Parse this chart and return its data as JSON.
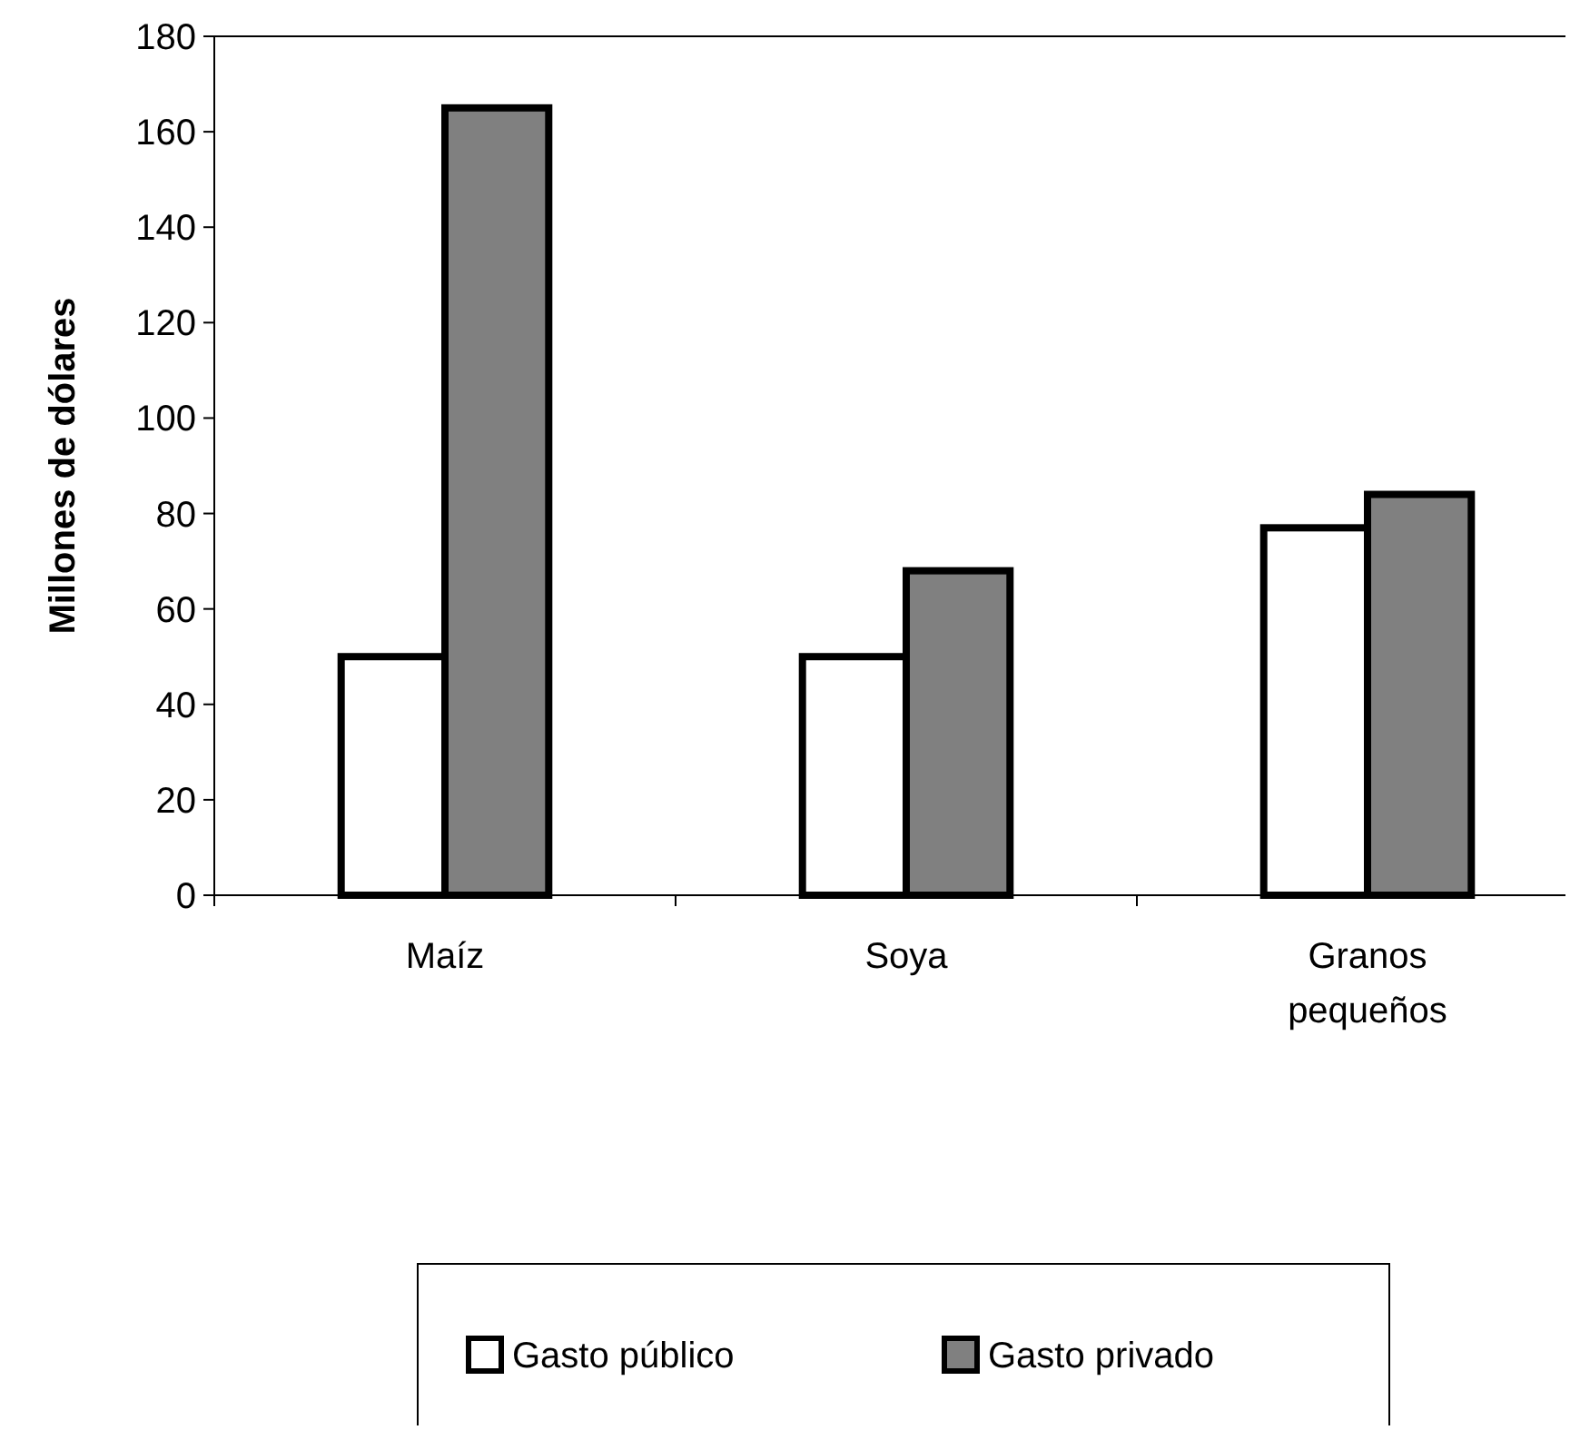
{
  "chart_data": {
    "type": "bar",
    "ylabel": "Millones de dólares",
    "categories": [
      "Maíz",
      "Soya",
      "Granos pequeños"
    ],
    "series": [
      {
        "name": "Gasto público",
        "color": "#ffffff",
        "values": [
          50,
          50,
          77
        ]
      },
      {
        "name": "Gasto privado",
        "color": "#808080",
        "values": [
          165,
          68,
          84
        ]
      }
    ],
    "ylim": [
      0,
      180
    ],
    "yticks": [
      0,
      20,
      40,
      60,
      80,
      100,
      120,
      140,
      160,
      180
    ],
    "grid": false,
    "legend": "bottom"
  }
}
